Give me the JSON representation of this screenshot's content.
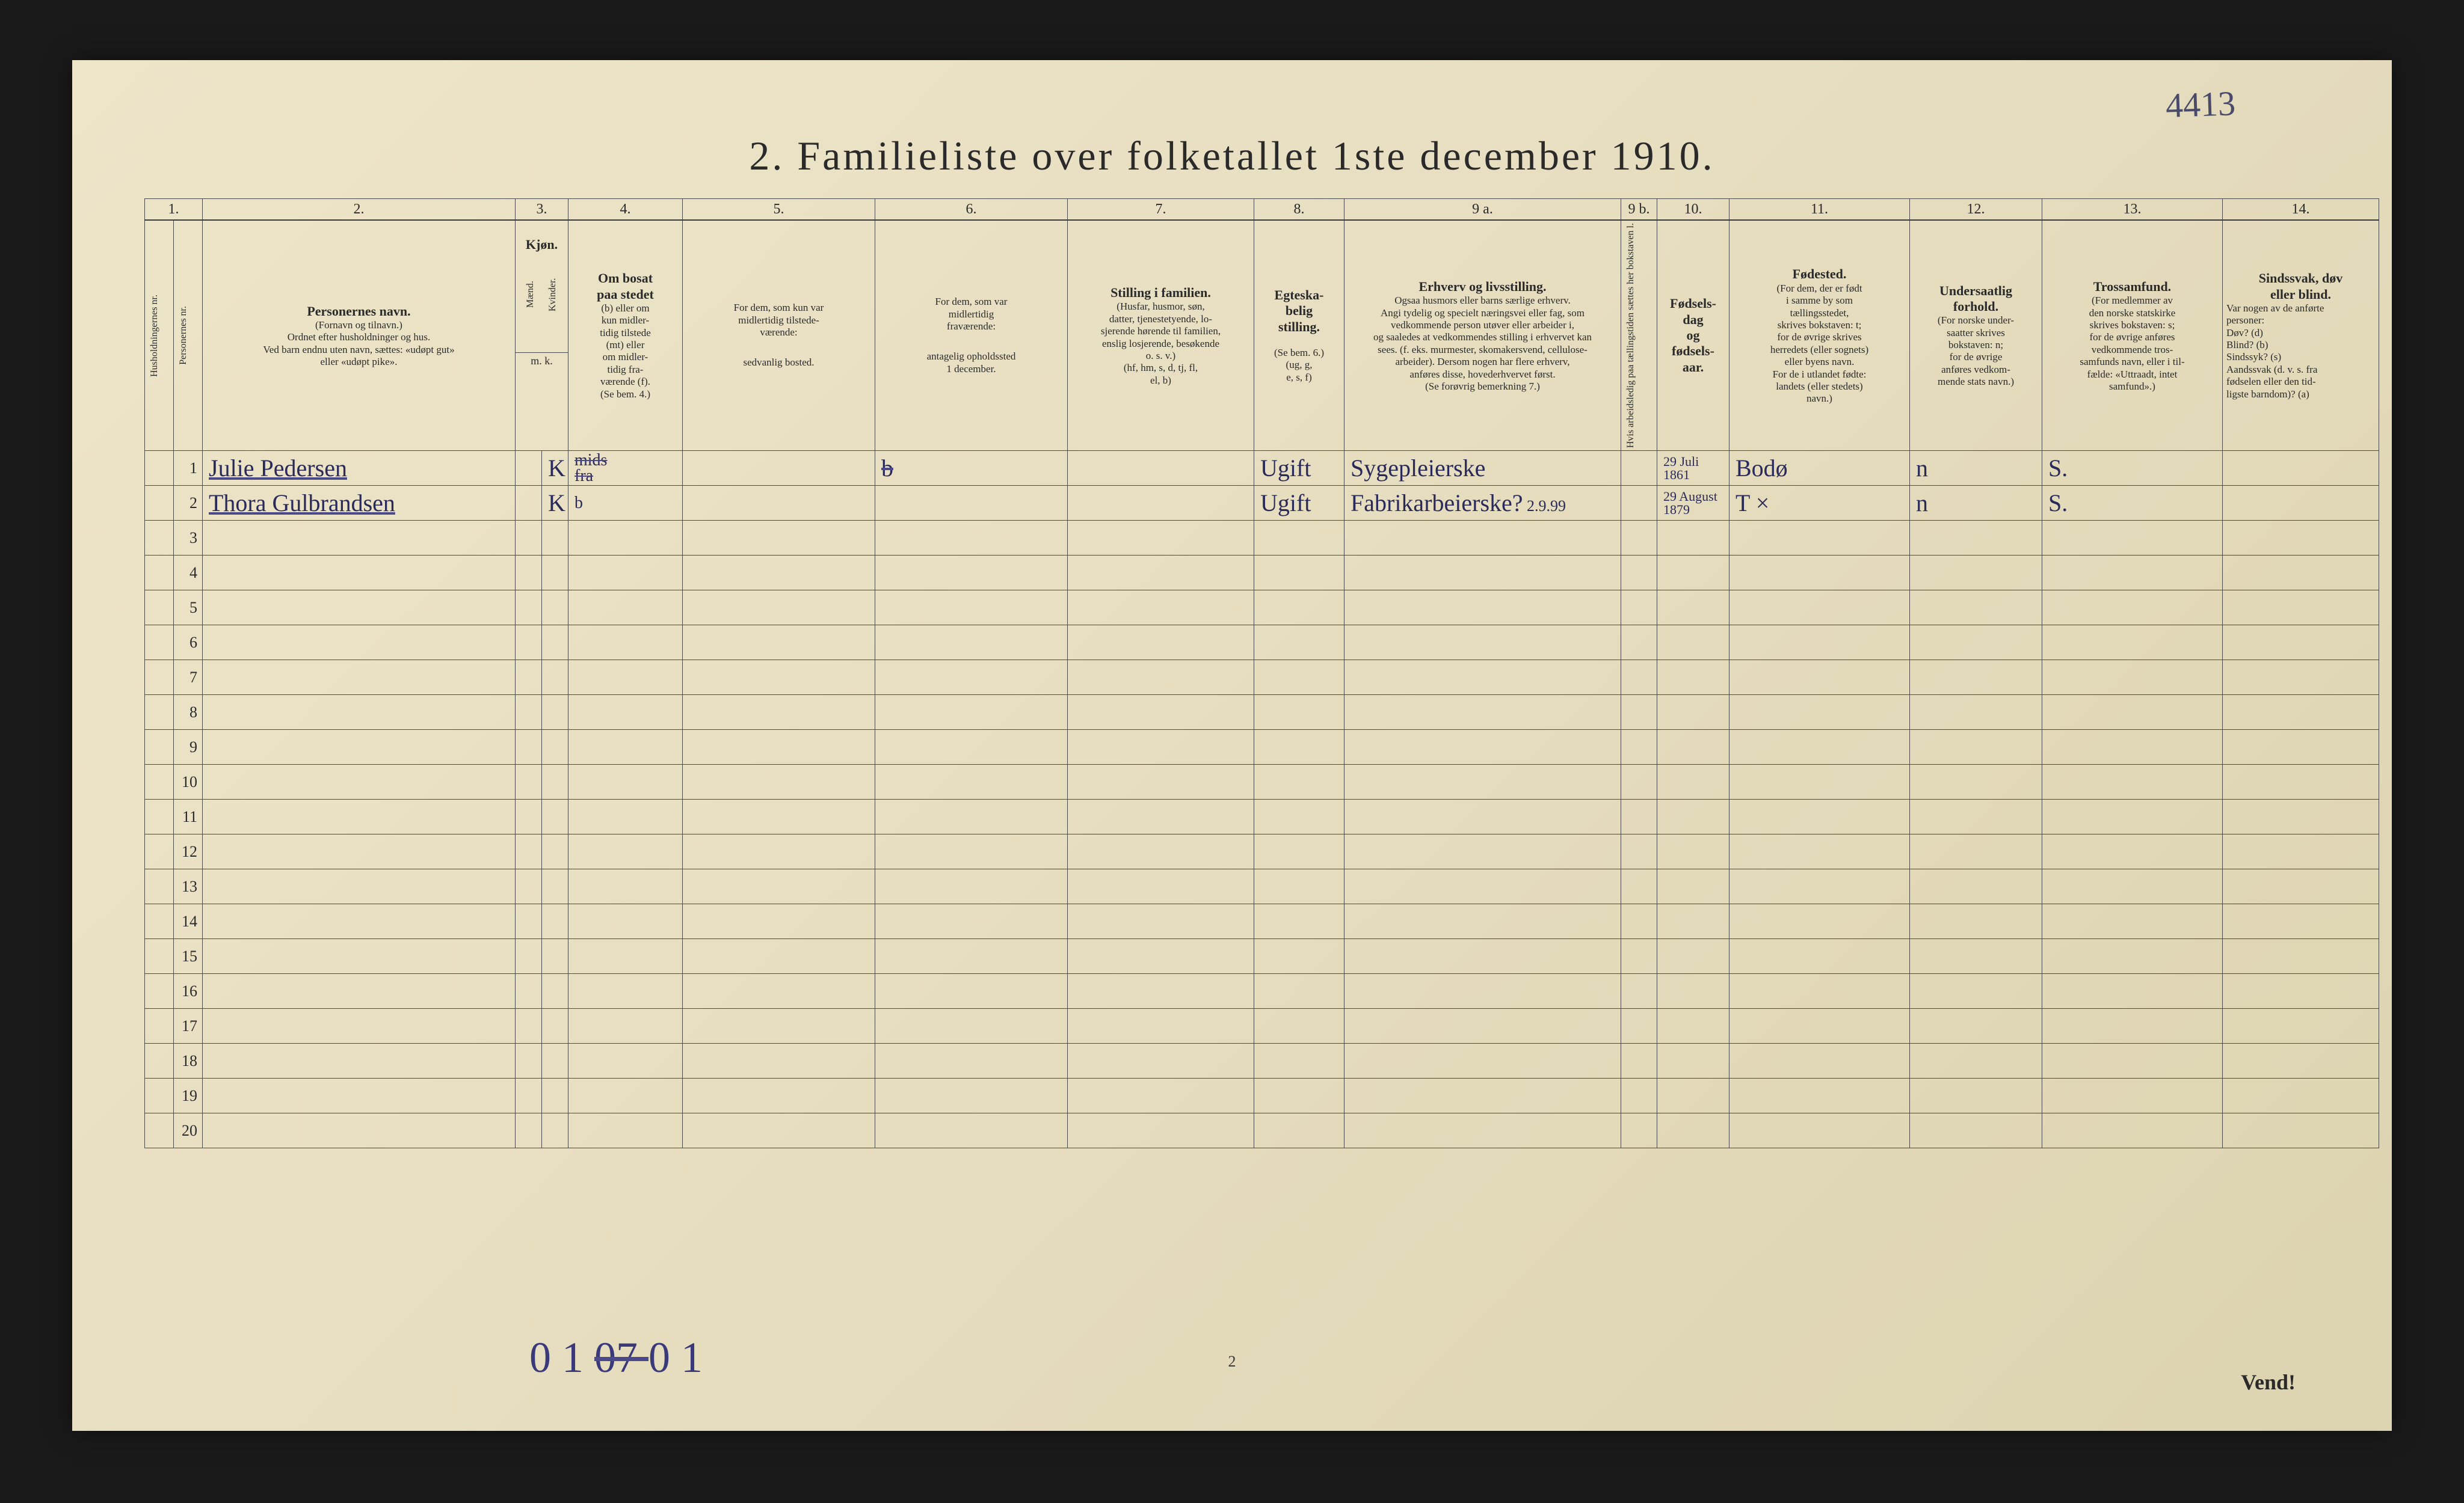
{
  "corner_note": "4413",
  "title": "2.  Familieliste over folketallet 1ste december 1910.",
  "col_numbers": [
    "1.",
    "",
    "2.",
    "3.",
    "4.",
    "5.",
    "6.",
    "7.",
    "8.",
    "9 a.",
    "9 b.",
    "10.",
    "11.",
    "12.",
    "13.",
    "14."
  ],
  "headers": {
    "c1": "Husholdningernes nr.",
    "c1b": "Personernes nr.",
    "c2_title": "Personernes navn.",
    "c2_sub": "(Fornavn og tilnavn.)\nOrdnet efter husholdninger og hus.\nVed barn endnu uten navn, sættes: «udøpt gut»\neller «udøpt pike».",
    "c3_title": "Kjøn.",
    "c3a": "Mænd.",
    "c3b": "Kvinder.",
    "c3_sub": "m.  k.",
    "c4_title": "Om bosat\npaa stedet",
    "c4_body": "(b) eller om\nkun midler-\ntidig tilstede\n(mt) eller\nom midler-\ntidig fra-\nværende (f).\n(Se bem. 4.)",
    "c5_title": "For dem, som kun var\nmidlertidig tilstede-\nværende:",
    "c5_sub": "sedvanlig bosted.",
    "c6_title": "For dem, som var\nmidlertidig\nfraværende:",
    "c6_sub": "antagelig opholdssted\n1 december.",
    "c7_title": "Stilling i familien.",
    "c7_body": "(Husfar, husmor, søn,\ndatter, tjenestetyende, lo-\nsjerende hørende til familien,\nenslig losjerende, besøkende\no. s. v.)\n(hf, hm, s, d, tj, fl,\nel, b)",
    "c8_title": "Egteska-\nbelig\nstilling.",
    "c8_body": "(Se bem. 6.)\n(ug, g,\ne, s, f)",
    "c9_title": "Erhverv og livsstilling.",
    "c9_body": "Ogsaa husmors eller barns særlige erhverv.\nAngi tydelig og specielt næringsvei eller fag, som\nvedkommende person utøver eller arbeider i,\nog saaledes at vedkommendes stilling i erhvervet kan\nsees. (f. eks. murmester, skomakersvend, cellulose-\narbeider). Dersom nogen har flere erhverv,\nanføres disse, hovederhvervet først.\n(Se forøvrig bemerkning 7.)",
    "c9b": "Hvis arbeidsledig\npaa tællingstiden sættes\nher bokstaven l.",
    "c10_title": "Fødsels-\ndag\nog\nfødsels-\naar.",
    "c11_title": "Fødested.",
    "c11_body": "(For dem, der er født\ni samme by som\ntællingsstedet,\nskrives bokstaven: t;\nfor de øvrige skrives\nherredets (eller sognets)\neller byens navn.\nFor de i utlandet fødte:\nlandets (eller stedets)\nnavn.)",
    "c12_title": "Undersaatlig\nforhold.",
    "c12_body": "(For norske under-\nsaatter skrives\nbokstaven: n;\nfor de øvrige\nanføres vedkom-\nmende stats navn.)",
    "c13_title": "Trossamfund.",
    "c13_body": "(For medlemmer av\nden norske statskirke\nskrives bokstaven: s;\nfor de øvrige anføres\nvedkommende tros-\nsamfunds navn, eller i til-\nfælde: «Uttraadt, intet\nsamfund».)",
    "c14_title": "Sindssvak, døv\neller blind.",
    "c14_body": "Var nogen av de anførte\npersoner:\nDøv?       (d)\nBlind?      (b)\nSindssyk?  (s)\nAandssvak (d. v. s. fra\nfødselen eller den tid-\nligste barndom)? (a)"
  },
  "rows": [
    {
      "n": "1",
      "name": "Julie Pedersen",
      "name_class": "underline",
      "mk": "K",
      "c4": "mids\nfra",
      "c4_strike": true,
      "c5": "",
      "c6": "b",
      "c6_strike": true,
      "c8": "Ugift",
      "c9": "Sygepleierske",
      "c10": "29 Juli\n1861",
      "c11": "Bodø",
      "c12": "n",
      "c13": "S."
    },
    {
      "n": "2",
      "name": "Thora Gulbrandsen",
      "name_class": "underline",
      "mk": "K",
      "c4": "b",
      "c8": "Ugift",
      "c9": "Fabrikarbeierske?",
      "c9_extra": "2.9.99",
      "c10": "29 August\n1879",
      "c11": "T ×",
      "c12": "n",
      "c13": "S."
    },
    {
      "n": "3"
    },
    {
      "n": "4"
    },
    {
      "n": "5"
    },
    {
      "n": "6"
    },
    {
      "n": "7"
    },
    {
      "n": "8"
    },
    {
      "n": "9"
    },
    {
      "n": "10"
    },
    {
      "n": "11"
    },
    {
      "n": "12"
    },
    {
      "n": "13"
    },
    {
      "n": "14"
    },
    {
      "n": "15"
    },
    {
      "n": "16"
    },
    {
      "n": "17"
    },
    {
      "n": "18"
    },
    {
      "n": "19"
    },
    {
      "n": "20"
    }
  ],
  "bottom_notes": "0 1   07   0 1",
  "bottom_strike_idx": 1,
  "page_num": "2",
  "vend": "Vend!",
  "colors": {
    "paper": "#e8dfc2",
    "ink": "#2a2a2a",
    "pen": "#2a2a5a",
    "border": "#4a4a4a"
  }
}
